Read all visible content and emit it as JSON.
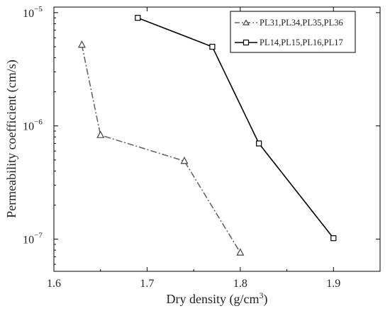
{
  "chart_data": {
    "type": "line",
    "xlabel": "Dry density (g/cm",
    "xlabel_sup": "3",
    "xlabel_close": ")",
    "ylabel": "Permeability coefficient (cm/s)",
    "xlim": [
      1.6,
      1.95
    ],
    "ylim": [
      5.2e-08,
      1.12e-05
    ],
    "y_scale": "log",
    "x_ticks": [
      {
        "value": 1.6,
        "label": "1.6"
      },
      {
        "value": 1.7,
        "label": "1.7"
      },
      {
        "value": 1.8,
        "label": "1.8"
      },
      {
        "value": 1.9,
        "label": "1.9"
      }
    ],
    "y_ticks": [
      {
        "value": 1e-05,
        "base": "10",
        "exp": "−5"
      },
      {
        "value": 1e-06,
        "base": "10",
        "exp": "−6"
      },
      {
        "value": 1e-07,
        "base": "10",
        "exp": "−7"
      }
    ],
    "grid": false,
    "legend_position": "top-right",
    "series": [
      {
        "name": "PL31,PL34,PL35,PL36",
        "marker": "triangle",
        "line_style": "dash-dot",
        "color": "#666666",
        "points": [
          {
            "x": 1.63,
            "y": 5.2e-06
          },
          {
            "x": 1.65,
            "y": 8.3e-07
          },
          {
            "x": 1.74,
            "y": 4.9e-07
          },
          {
            "x": 1.8,
            "y": 7.6e-08
          }
        ]
      },
      {
        "name": "PL14,PL15,PL16,PL17",
        "marker": "square",
        "line_style": "solid",
        "color": "#000000",
        "points": [
          {
            "x": 1.69,
            "y": 9e-06
          },
          {
            "x": 1.77,
            "y": 5e-06
          },
          {
            "x": 1.82,
            "y": 7e-07
          },
          {
            "x": 1.9,
            "y": 1.02e-07
          }
        ]
      }
    ]
  }
}
